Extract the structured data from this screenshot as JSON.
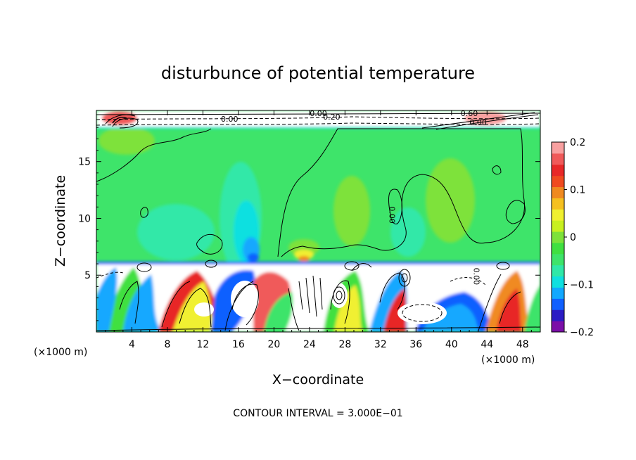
{
  "chart_data": {
    "type": "heatmap",
    "title": "disturbunce of potential temperature",
    "xlabel": "X−coordinate",
    "ylabel": "Z−coordinate",
    "x_unit": "(×1000 m)",
    "y_unit": "(×1000 m)",
    "footer": "CONTOUR INTERVAL = 3.000E−01",
    "xlim": [
      0,
      50
    ],
    "ylim": [
      0,
      19.5
    ],
    "x_ticks": [
      4,
      8,
      12,
      16,
      20,
      24,
      28,
      32,
      36,
      40,
      44,
      48
    ],
    "y_ticks": [
      5,
      10,
      15
    ],
    "x_tick_labels": [
      "4",
      "8",
      "12",
      "16",
      "20",
      "24",
      "28",
      "32",
      "36",
      "40",
      "44",
      "48"
    ],
    "y_tick_labels": [
      "5",
      "10",
      "15"
    ],
    "colorbar": {
      "min": -0.2,
      "max": 0.2,
      "tick_labels": [
        "0.2",
        "0.1",
        "0",
        "−0.1",
        "−0.2"
      ],
      "colors": [
        "#7b0fa8",
        "#2b1cc4",
        "#1060ff",
        "#12a8ff",
        "#10e0e0",
        "#30e8a8",
        "#3ee46a",
        "#40e040",
        "#7ee23a",
        "#c8f020",
        "#f0f030",
        "#f5c020",
        "#f08a20",
        "#f04a20",
        "#e82828",
        "#f05a5a",
        "#f8a0a0"
      ]
    },
    "contour_labels": [
      {
        "text": "0.00",
        "x": 25,
        "z": 19.0
      },
      {
        "text": "0.00",
        "x": 15,
        "z": 18.5
      },
      {
        "text": "0.20",
        "x": 26.5,
        "z": 18.7
      },
      {
        "text": "0.60",
        "x": 42,
        "z": 19.0
      },
      {
        "text": "0.00",
        "x": 43,
        "z": 18.2
      },
      {
        "text": "0.00",
        "x": 33,
        "z": 10.3
      },
      {
        "text": "0.00",
        "x": 42.5,
        "z": 4.9
      }
    ]
  }
}
